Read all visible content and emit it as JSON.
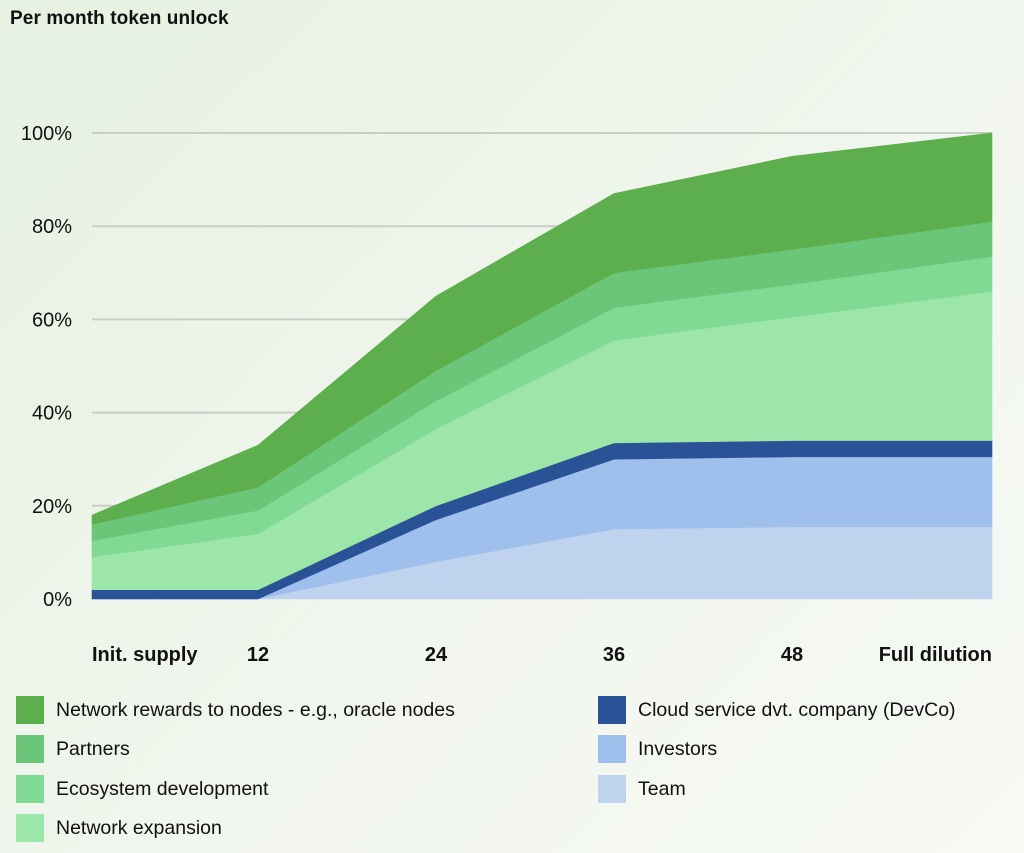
{
  "chart_data": {
    "type": "area",
    "stacked": true,
    "title": "Per month token unlock",
    "x": [
      "Init. supply",
      "12",
      "24",
      "36",
      "48",
      "Full dilution"
    ],
    "xlabel": "",
    "ylabel": "",
    "ylim": [
      0,
      100
    ],
    "yticks": [
      "0%",
      "20%",
      "40%",
      "60%",
      "80%",
      "100%"
    ],
    "grid": true,
    "legend_position": "bottom",
    "series": [
      {
        "name": "Team",
        "color": "#bfd3ef",
        "values": [
          0,
          0,
          8,
          15,
          15.5,
          15.5
        ]
      },
      {
        "name": "Investors",
        "color": "#9fc0ed",
        "values": [
          0,
          0,
          9,
          15,
          15,
          15
        ]
      },
      {
        "name": "Cloud service dvt. company (DevCo)",
        "color": "#2a5296",
        "values": [
          2,
          2,
          3,
          3.5,
          3.5,
          3.5
        ]
      },
      {
        "name": "Network expansion",
        "color": "#9ce6a9",
        "values": [
          7,
          12,
          16.5,
          22,
          26.5,
          32
        ]
      },
      {
        "name": "Ecosystem development",
        "color": "#81da93",
        "values": [
          3.5,
          5,
          6,
          7,
          7,
          7.5
        ]
      },
      {
        "name": "Partners",
        "color": "#6cc67a",
        "values": [
          3.5,
          5,
          6.5,
          7.5,
          7.5,
          7.5
        ]
      },
      {
        "name": "Network rewards to nodes - e.g., oracle nodes",
        "color": "#5caf4c",
        "values": [
          2,
          9,
          16,
          17,
          20,
          19
        ]
      }
    ]
  },
  "legend": {
    "left": [
      {
        "label": "Network rewards to nodes - e.g., oracle nodes",
        "color": "#5caf4c"
      },
      {
        "label": "Partners",
        "color": "#6cc67a"
      },
      {
        "label": "Ecosystem development",
        "color": "#81da93"
      },
      {
        "label": "Network expansion",
        "color": "#9ce6a9"
      }
    ],
    "right": [
      {
        "label": "Cloud service dvt. company (DevCo)",
        "color": "#2a5296"
      },
      {
        "label": "Investors",
        "color": "#9fc0ed"
      },
      {
        "label": "Team",
        "color": "#bfd3ef"
      }
    ]
  }
}
